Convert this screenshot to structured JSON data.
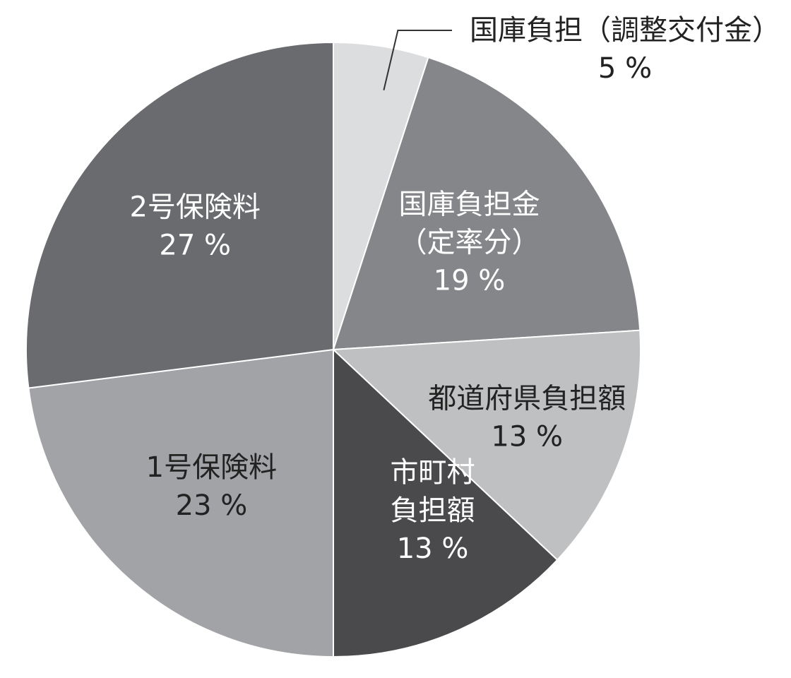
{
  "chart_data": {
    "type": "pie",
    "title": "",
    "slices": [
      {
        "label_lines": [
          "国庫負担（調整交付金）"
        ],
        "value_label": "5 %",
        "value": 5,
        "color": "#dcdddf",
        "label_color": "#222222",
        "callout": true
      },
      {
        "label_lines": [
          "国庫負担金",
          "（定率分）"
        ],
        "value_label": "19 %",
        "value": 19,
        "color": "#858689",
        "label_color": "#ffffff",
        "callout": false
      },
      {
        "label_lines": [
          "都道府県負担額"
        ],
        "value_label": "13 %",
        "value": 13,
        "color": "#bfc0c2",
        "label_color": "#222222",
        "callout": false
      },
      {
        "label_lines": [
          "市町村",
          "負担額"
        ],
        "value_label": "13 %",
        "value": 13,
        "color": "#4a4a4d",
        "label_color": "#ffffff",
        "callout": false
      },
      {
        "label_lines": [
          "1号保険料"
        ],
        "value_label": "23 %",
        "value": 23,
        "color": "#a2a3a6",
        "label_color": "#222222",
        "callout": false
      },
      {
        "label_lines": [
          "2号保険料"
        ],
        "value_label": "27 %",
        "value": 27,
        "color": "#6a6b6f",
        "label_color": "#ffffff",
        "callout": false
      }
    ]
  }
}
